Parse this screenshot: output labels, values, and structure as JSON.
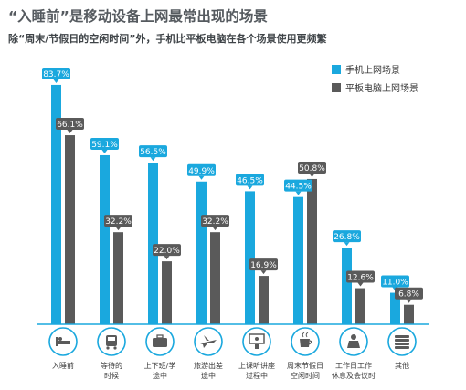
{
  "header": {
    "title": "“入睡前”是移动设备上网最常出现的场景",
    "subtitle": "除“周末/节假日的空闲时间”外，手机比平板电脑在各个场景使用更频繁"
  },
  "colors": {
    "mobile": "#1aa8de",
    "tablet": "#5a5a5a",
    "baseline": "#1aa8de"
  },
  "chart_data": {
    "type": "bar",
    "title": "“入睡前”是移动设备上网最常出现的场景",
    "subtitle": "除“周末/节假日的空闲时间”外，手机比平板电脑在各个场景使用更频繁",
    "categories": [
      [
        "入睡前"
      ],
      [
        "等待的",
        "时候"
      ],
      [
        "上下班/学",
        "途中"
      ],
      [
        "旅游出差",
        "途中"
      ],
      [
        "上课听讲座",
        "过程中"
      ],
      [
        "周末节假日",
        "空闲时间"
      ],
      [
        "工作日工作",
        "休息及会议时"
      ],
      [
        "其他"
      ]
    ],
    "icons": [
      "bed-icon",
      "bus-icon",
      "briefcase-icon",
      "airplane-icon",
      "classroom-icon",
      "coffee-icon",
      "office-icon",
      "books-icon"
    ],
    "series": [
      {
        "name": "手机上网场景",
        "values": [
          83.7,
          59.1,
          56.5,
          49.9,
          46.5,
          44.5,
          26.8,
          11.0
        ],
        "labels": [
          "83.7%",
          "59.1%",
          "56.5%",
          "49.9%",
          "46.5%",
          "44.5%",
          "26.8%",
          "11.0%"
        ]
      },
      {
        "name": "平板电脑上网场景",
        "values": [
          66.1,
          32.2,
          22.0,
          32.2,
          16.9,
          50.8,
          12.6,
          6.8
        ],
        "labels": [
          "66.1%",
          "32.2%",
          "22.0%",
          "32.2%",
          "16.9%",
          "50.8%",
          "12.6%",
          "6.8%"
        ]
      }
    ],
    "ylim": [
      0,
      90
    ],
    "grid": false,
    "legend": "top-right"
  }
}
